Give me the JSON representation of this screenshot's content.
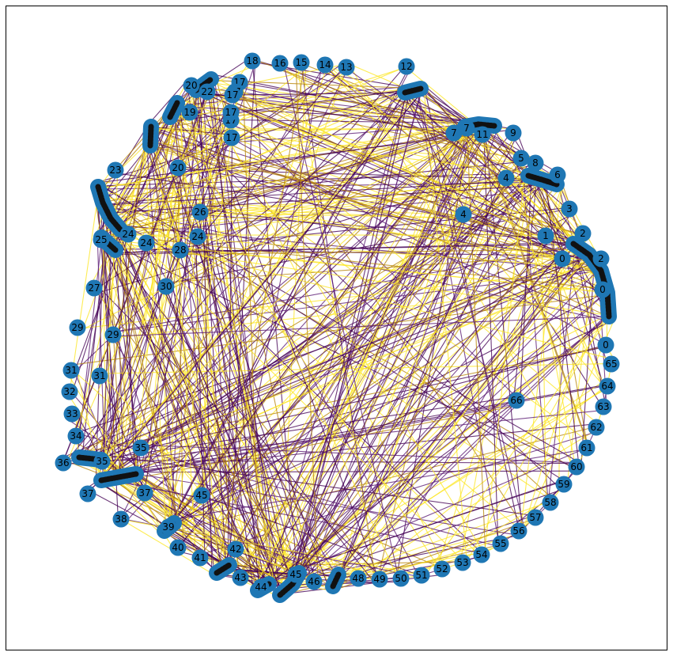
{
  "colors": {
    "node": "#1f77b4",
    "edge_dark": "#440154",
    "edge_purple": "#5b1b73",
    "edge_gold": "#b8860b",
    "edge_yellow": "#fde725",
    "frame": "#000000",
    "label": "#000000"
  },
  "graph": {
    "nodes": [
      {
        "id": "n0a",
        "label": "0"
      },
      {
        "id": "n0b",
        "label": "0"
      },
      {
        "id": "n0c",
        "label": "0"
      },
      {
        "id": "n1",
        "label": "1"
      },
      {
        "id": "n2a",
        "label": "2"
      },
      {
        "id": "n2b",
        "label": "2"
      },
      {
        "id": "n3",
        "label": "3"
      },
      {
        "id": "n4a",
        "label": "4"
      },
      {
        "id": "n4b",
        "label": "4"
      },
      {
        "id": "n5",
        "label": "5"
      },
      {
        "id": "n6",
        "label": "6"
      },
      {
        "id": "n7a",
        "label": "7"
      },
      {
        "id": "n7b",
        "label": "7"
      },
      {
        "id": "n8",
        "label": "8"
      },
      {
        "id": "n9",
        "label": "9"
      },
      {
        "id": "n11",
        "label": "11"
      },
      {
        "id": "n12",
        "label": "12"
      },
      {
        "id": "n13",
        "label": "13"
      },
      {
        "id": "n14",
        "label": "14"
      },
      {
        "id": "n15",
        "label": "15"
      },
      {
        "id": "n16",
        "label": "16"
      },
      {
        "id": "n17a",
        "label": "17"
      },
      {
        "id": "n17b",
        "label": "17"
      },
      {
        "id": "n17c",
        "label": "17"
      },
      {
        "id": "n17d",
        "label": "17"
      },
      {
        "id": "n17e",
        "label": "17"
      },
      {
        "id": "n17f",
        "label": "17"
      },
      {
        "id": "n18",
        "label": "18"
      },
      {
        "id": "n19",
        "label": "19"
      },
      {
        "id": "n20a",
        "label": "20"
      },
      {
        "id": "n20b",
        "label": "20"
      },
      {
        "id": "n22",
        "label": "22"
      },
      {
        "id": "n23",
        "label": "23"
      },
      {
        "id": "n24a",
        "label": "24"
      },
      {
        "id": "n24b",
        "label": "24"
      },
      {
        "id": "n24c",
        "label": "24"
      },
      {
        "id": "n25",
        "label": "25"
      },
      {
        "id": "n26",
        "label": "26"
      },
      {
        "id": "n27",
        "label": "27"
      },
      {
        "id": "n28",
        "label": "28"
      },
      {
        "id": "n29a",
        "label": "29"
      },
      {
        "id": "n29b",
        "label": "29"
      },
      {
        "id": "n30",
        "label": "30"
      },
      {
        "id": "n31a",
        "label": "31"
      },
      {
        "id": "n31b",
        "label": "31"
      },
      {
        "id": "n32",
        "label": "32"
      },
      {
        "id": "n33",
        "label": "33"
      },
      {
        "id": "n34",
        "label": "34"
      },
      {
        "id": "n35a",
        "label": "35"
      },
      {
        "id": "n35b",
        "label": "35"
      },
      {
        "id": "n36",
        "label": "36"
      },
      {
        "id": "n37a",
        "label": "37"
      },
      {
        "id": "n37b",
        "label": "37"
      },
      {
        "id": "n38",
        "label": "38"
      },
      {
        "id": "n39",
        "label": "39"
      },
      {
        "id": "n40",
        "label": "40"
      },
      {
        "id": "n41",
        "label": "41"
      },
      {
        "id": "n42",
        "label": "42"
      },
      {
        "id": "n43",
        "label": "43"
      },
      {
        "id": "n44",
        "label": "44"
      },
      {
        "id": "n45a",
        "label": "45"
      },
      {
        "id": "n45b",
        "label": "45"
      },
      {
        "id": "n46",
        "label": "46"
      },
      {
        "id": "n48",
        "label": "48"
      },
      {
        "id": "n49",
        "label": "49"
      },
      {
        "id": "n50",
        "label": "50"
      },
      {
        "id": "n51",
        "label": "51"
      },
      {
        "id": "n52",
        "label": "52"
      },
      {
        "id": "n53",
        "label": "53"
      },
      {
        "id": "n54",
        "label": "54"
      },
      {
        "id": "n55",
        "label": "55"
      },
      {
        "id": "n56",
        "label": "56"
      },
      {
        "id": "n57",
        "label": "57"
      },
      {
        "id": "n58",
        "label": "58"
      },
      {
        "id": "n59",
        "label": "59"
      },
      {
        "id": "n60",
        "label": "60"
      },
      {
        "id": "n61",
        "label": "61"
      },
      {
        "id": "n62",
        "label": "62"
      },
      {
        "id": "n63",
        "label": "63"
      },
      {
        "id": "n64",
        "label": "64"
      },
      {
        "id": "n65",
        "label": "65"
      },
      {
        "id": "n66",
        "label": "66"
      }
    ]
  }
}
